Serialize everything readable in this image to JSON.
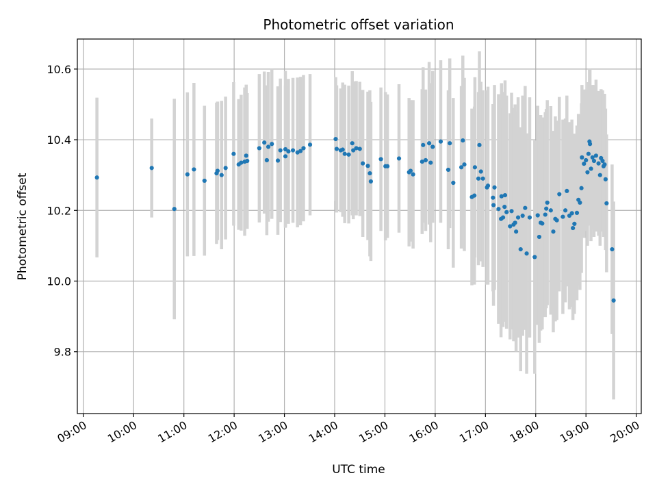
{
  "chart_data": {
    "type": "scatter",
    "title": "Photometric offset variation",
    "xlabel": "UTC time",
    "ylabel": "Photometric offset",
    "x_unit": "hours UTC",
    "xlim": [
      8.88,
      20.1
    ],
    "ylim": [
      9.625,
      10.685
    ],
    "x_ticks": [
      9,
      10,
      11,
      12,
      13,
      14,
      15,
      16,
      17,
      18,
      19,
      20
    ],
    "x_tick_labels": [
      "09:00",
      "10:00",
      "11:00",
      "12:00",
      "13:00",
      "14:00",
      "15:00",
      "16:00",
      "17:00",
      "18:00",
      "19:00",
      "20:00"
    ],
    "y_ticks": [
      9.8,
      10.0,
      10.2,
      10.4,
      10.6
    ],
    "y_tick_labels": [
      "9.8",
      "10.0",
      "10.2",
      "10.4",
      "10.6"
    ],
    "grid": true,
    "series": [
      {
        "marker_color": "#1f77b4",
        "errorbar_color": "#d3d3d3",
        "points": [
          [
            9.27,
            10.293,
            0.226
          ],
          [
            10.36,
            10.32,
            0.14
          ],
          [
            10.81,
            10.204,
            0.312
          ],
          [
            11.07,
            10.302,
            0.232
          ],
          [
            11.2,
            10.316,
            0.245
          ],
          [
            11.41,
            10.284,
            0.212
          ],
          [
            11.65,
            10.305,
            0.2
          ],
          [
            11.67,
            10.312,
            0.196
          ],
          [
            11.75,
            10.3,
            0.21
          ],
          [
            11.83,
            10.32,
            0.202
          ],
          [
            11.99,
            10.36,
            0.203
          ],
          [
            12.09,
            10.33,
            0.185
          ],
          [
            12.14,
            10.335,
            0.192
          ],
          [
            12.21,
            10.338,
            0.21
          ],
          [
            12.24,
            10.355,
            0.201
          ],
          [
            12.26,
            10.34,
            0.192
          ],
          [
            12.5,
            10.376,
            0.21
          ],
          [
            12.6,
            10.392,
            0.201
          ],
          [
            12.65,
            10.342,
            0.212
          ],
          [
            12.68,
            10.38,
            0.212
          ],
          [
            12.75,
            10.388,
            0.212
          ],
          [
            12.87,
            10.341,
            0.21
          ],
          [
            12.92,
            10.37,
            0.203
          ],
          [
            13.02,
            10.373,
            0.222
          ],
          [
            13.02,
            10.353,
            0.2
          ],
          [
            13.08,
            10.367,
            0.205
          ],
          [
            13.17,
            10.37,
            0.205
          ],
          [
            13.26,
            10.364,
            0.212
          ],
          [
            13.32,
            10.368,
            0.21
          ],
          [
            13.38,
            10.376,
            0.207
          ],
          [
            13.51,
            10.386,
            0.2
          ],
          [
            14.02,
            10.402,
            0.175
          ],
          [
            14.04,
            10.374,
            0.18
          ],
          [
            14.12,
            10.37,
            0.175
          ],
          [
            14.16,
            10.372,
            0.19
          ],
          [
            14.2,
            10.36,
            0.196
          ],
          [
            14.28,
            10.358,
            0.195
          ],
          [
            14.35,
            10.39,
            0.204
          ],
          [
            14.37,
            10.37,
            0.195
          ],
          [
            14.43,
            10.376,
            0.19
          ],
          [
            14.5,
            10.374,
            0.19
          ],
          [
            14.56,
            10.333,
            0.208
          ],
          [
            14.66,
            10.326,
            0.21
          ],
          [
            14.7,
            10.305,
            0.235
          ],
          [
            14.72,
            10.282,
            0.225
          ],
          [
            14.92,
            10.345,
            0.203
          ],
          [
            15.01,
            10.325,
            0.21
          ],
          [
            15.05,
            10.325,
            0.203
          ],
          [
            15.28,
            10.347,
            0.21
          ],
          [
            15.48,
            10.308,
            0.21
          ],
          [
            15.51,
            10.312,
            0.2
          ],
          [
            15.56,
            10.302,
            0.21
          ],
          [
            15.74,
            10.338,
            0.205
          ],
          [
            15.76,
            10.385,
            0.22
          ],
          [
            15.81,
            10.342,
            0.2
          ],
          [
            15.88,
            10.39,
            0.23
          ],
          [
            15.91,
            10.335,
            0.225
          ],
          [
            15.95,
            10.38,
            0.215
          ],
          [
            16.11,
            10.395,
            0.23
          ],
          [
            16.26,
            10.315,
            0.225
          ],
          [
            16.29,
            10.39,
            0.24
          ],
          [
            16.36,
            10.278,
            0.24
          ],
          [
            16.52,
            10.322,
            0.23
          ],
          [
            16.55,
            10.398,
            0.24
          ],
          [
            16.58,
            10.33,
            0.245
          ],
          [
            16.73,
            10.238,
            0.25
          ],
          [
            16.78,
            10.242,
            0.252
          ],
          [
            16.79,
            10.322,
            0.255
          ],
          [
            16.86,
            10.29,
            0.245
          ],
          [
            16.88,
            10.385,
            0.265
          ],
          [
            16.91,
            10.31,
            0.254
          ],
          [
            16.95,
            10.29,
            0.25
          ],
          [
            17.03,
            10.265,
            0.275
          ],
          [
            17.05,
            10.27,
            0.28
          ],
          [
            17.15,
            10.236,
            0.265
          ],
          [
            17.16,
            10.215,
            0.285
          ],
          [
            17.18,
            10.265,
            0.29
          ],
          [
            17.26,
            10.204,
            0.325
          ],
          [
            17.31,
            10.176,
            0.335
          ],
          [
            17.32,
            10.24,
            0.32
          ],
          [
            17.35,
            10.18,
            0.31
          ],
          [
            17.38,
            10.21,
            0.325
          ],
          [
            17.39,
            10.243,
            0.325
          ],
          [
            17.42,
            10.195,
            0.33
          ],
          [
            17.49,
            10.155,
            0.32
          ],
          [
            17.52,
            10.198,
            0.335
          ],
          [
            17.56,
            10.16,
            0.33
          ],
          [
            17.59,
            10.165,
            0.335
          ],
          [
            17.61,
            10.14,
            0.34
          ],
          [
            17.65,
            10.18,
            0.34
          ],
          [
            17.7,
            10.09,
            0.345
          ],
          [
            17.74,
            10.185,
            0.34
          ],
          [
            17.79,
            10.207,
            0.345
          ],
          [
            17.82,
            10.078,
            0.34
          ],
          [
            17.88,
            10.18,
            0.34
          ],
          [
            17.98,
            10.068,
            0.33
          ],
          [
            18.04,
            10.186,
            0.31
          ],
          [
            18.07,
            10.125,
            0.3
          ],
          [
            18.1,
            10.165,
            0.305
          ],
          [
            18.13,
            10.163,
            0.3
          ],
          [
            18.19,
            10.188,
            0.29
          ],
          [
            18.21,
            10.205,
            0.282
          ],
          [
            18.23,
            10.222,
            0.29
          ],
          [
            18.3,
            10.2,
            0.295
          ],
          [
            18.35,
            10.14,
            0.285
          ],
          [
            18.39,
            10.176,
            0.29
          ],
          [
            18.42,
            10.172,
            0.282
          ],
          [
            18.47,
            10.246,
            0.275
          ],
          [
            18.54,
            10.182,
            0.275
          ],
          [
            18.59,
            10.2,
            0.26
          ],
          [
            18.62,
            10.255,
            0.27
          ],
          [
            18.67,
            10.185,
            0.265
          ],
          [
            18.72,
            10.192,
            0.265
          ],
          [
            18.74,
            10.15,
            0.26
          ],
          [
            18.77,
            10.162,
            0.255
          ],
          [
            18.82,
            10.193,
            0.247
          ],
          [
            18.85,
            10.23,
            0.243
          ],
          [
            18.88,
            10.222,
            0.247
          ],
          [
            18.91,
            10.263,
            0.24
          ],
          [
            18.92,
            10.35,
            0.205
          ],
          [
            18.96,
            10.332,
            0.21
          ],
          [
            19.0,
            10.342,
            0.2
          ],
          [
            19.03,
            10.308,
            0.208
          ],
          [
            19.05,
            10.36,
            0.203
          ],
          [
            19.07,
            10.395,
            0.205
          ],
          [
            19.08,
            10.388,
            0.21
          ],
          [
            19.1,
            10.318,
            0.205
          ],
          [
            19.13,
            10.35,
            0.205
          ],
          [
            19.16,
            10.34,
            0.215
          ],
          [
            19.2,
            10.355,
            0.215
          ],
          [
            19.25,
            10.333,
            0.205
          ],
          [
            19.28,
            10.3,
            0.2
          ],
          [
            19.3,
            10.348,
            0.195
          ],
          [
            19.33,
            10.34,
            0.2
          ],
          [
            19.35,
            10.325,
            0.2
          ],
          [
            19.37,
            10.33,
            0.2
          ],
          [
            19.39,
            10.288,
            0.2
          ],
          [
            19.41,
            10.22,
            0.195
          ],
          [
            19.52,
            10.09,
            0.24
          ],
          [
            19.55,
            9.945,
            0.28
          ]
        ]
      }
    ]
  }
}
